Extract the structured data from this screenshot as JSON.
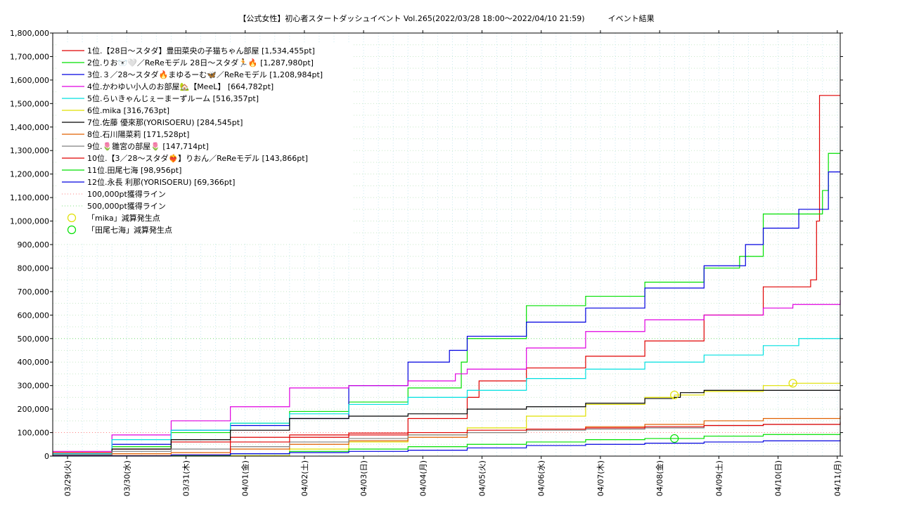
{
  "chart_data": {
    "type": "line",
    "title": "【公式女性】初心者スタートダッシュイベント Vol.265(2022/03/28 18:00～2022/04/10 21:59)　　　イベント結果",
    "y_ticks": [
      "0",
      "100,000",
      "200,000",
      "300,000",
      "400,000",
      "500,000",
      "600,000",
      "700,000",
      "800,000",
      "900,000",
      "1,000,000",
      "1,100,000",
      "1,200,000",
      "1,300,000",
      "1,400,000",
      "1,500,000",
      "1,600,000",
      "1,700,000",
      "1,800,000"
    ],
    "ylim": [
      0,
      1800000
    ],
    "x_ticks": [
      "03/29(火)",
      "03/30(水)",
      "03/31(木)",
      "04/01(金)",
      "04/02(土)",
      "04/03(日)",
      "04/04(月)",
      "04/05(火)",
      "04/06(水)",
      "04/07(木)",
      "04/08(金)",
      "04/09(土)",
      "04/10(日)",
      "04/11(月)"
    ],
    "xlim": [
      0,
      13.3
    ],
    "grid": true,
    "legend_position": "top-left",
    "series": [
      {
        "name": "1位.【28日〜スタダ】豊田菜央の子猫ちゃん部屋 [1,534,455pt]",
        "color": "#e00000",
        "points": [
          [
            0,
            15000
          ],
          [
            1,
            30000
          ],
          [
            2,
            60000
          ],
          [
            3,
            80000
          ],
          [
            4,
            90000
          ],
          [
            5,
            98000
          ],
          [
            6,
            160000
          ],
          [
            7,
            250000
          ],
          [
            7.2,
            320000
          ],
          [
            8,
            375000
          ],
          [
            9,
            425000
          ],
          [
            10,
            490000
          ],
          [
            11,
            600000
          ],
          [
            12,
            720000
          ],
          [
            12.8,
            750000
          ],
          [
            12.9,
            1000000
          ],
          [
            12.95,
            1534455
          ],
          [
            13.3,
            1534455
          ]
        ]
      },
      {
        "name": "2位.りお🐻‍❄️🤍／ReReモデル 28日〜スタダ🏃🔥 [1,287,980pt]",
        "color": "#00e000",
        "points": [
          [
            0,
            5000
          ],
          [
            1,
            40000
          ],
          [
            2,
            100000
          ],
          [
            3,
            140000
          ],
          [
            4,
            190000
          ],
          [
            5,
            230000
          ],
          [
            6,
            290000
          ],
          [
            6.9,
            400000
          ],
          [
            7,
            500000
          ],
          [
            8,
            640000
          ],
          [
            9,
            680000
          ],
          [
            10,
            740000
          ],
          [
            11,
            800000
          ],
          [
            11.6,
            850000
          ],
          [
            12,
            1030000
          ],
          [
            13,
            1130000
          ],
          [
            13.1,
            1287980
          ],
          [
            13.3,
            1287980
          ]
        ]
      },
      {
        "name": "3位.３／28〜スタダ🔥まゆるーむ🦋／ReReモデル [1,208,984pt]",
        "color": "#0000e0",
        "points": [
          [
            0,
            5000
          ],
          [
            1,
            50000
          ],
          [
            2,
            110000
          ],
          [
            3,
            130000
          ],
          [
            4,
            160000
          ],
          [
            5,
            300000
          ],
          [
            6,
            400000
          ],
          [
            6.7,
            450000
          ],
          [
            7,
            510000
          ],
          [
            8,
            570000
          ],
          [
            9,
            630000
          ],
          [
            10,
            715000
          ],
          [
            11,
            810000
          ],
          [
            11.7,
            900000
          ],
          [
            12,
            970000
          ],
          [
            12.6,
            1050000
          ],
          [
            13.1,
            1208984
          ],
          [
            13.3,
            1208984
          ]
        ]
      },
      {
        "name": "4位.かわゆい小人のお部屋🏡【MeeL】 [664,782pt]",
        "color": "#e000e0",
        "points": [
          [
            0,
            20000
          ],
          [
            1,
            90000
          ],
          [
            2,
            150000
          ],
          [
            3,
            210000
          ],
          [
            4,
            290000
          ],
          [
            5,
            300000
          ],
          [
            6,
            320000
          ],
          [
            6.8,
            350000
          ],
          [
            7,
            370000
          ],
          [
            8,
            460000
          ],
          [
            9,
            530000
          ],
          [
            10,
            580000
          ],
          [
            11,
            600000
          ],
          [
            12,
            630000
          ],
          [
            12.5,
            645000
          ],
          [
            13.3,
            664782
          ]
        ]
      },
      {
        "name": "5位.らいきゃんじぇーまーずルーム [516,357pt]",
        "color": "#00e0e0",
        "points": [
          [
            0,
            10000
          ],
          [
            1,
            70000
          ],
          [
            2,
            110000
          ],
          [
            3,
            140000
          ],
          [
            4,
            180000
          ],
          [
            5,
            220000
          ],
          [
            6,
            250000
          ],
          [
            7,
            280000
          ],
          [
            8,
            330000
          ],
          [
            9,
            370000
          ],
          [
            10,
            400000
          ],
          [
            11,
            430000
          ],
          [
            12,
            470000
          ],
          [
            12.6,
            500000
          ],
          [
            13.3,
            516357
          ]
        ]
      },
      {
        "name": "6位.mika [316,763pt]",
        "color": "#e0e000",
        "points": [
          [
            0,
            2000
          ],
          [
            4,
            30000
          ],
          [
            5,
            60000
          ],
          [
            6,
            90000
          ],
          [
            7,
            120000
          ],
          [
            8,
            170000
          ],
          [
            9,
            220000
          ],
          [
            10,
            250000
          ],
          [
            10.5,
            260000
          ],
          [
            11,
            275000
          ],
          [
            12,
            300000
          ],
          [
            12.5,
            310000
          ],
          [
            13.3,
            316763
          ]
        ]
      },
      {
        "name": "7位.佐藤 優來那(YORISOERU) [284,545pt]",
        "color": "#000000",
        "points": [
          [
            0,
            5000
          ],
          [
            1,
            30000
          ],
          [
            2,
            70000
          ],
          [
            3,
            110000
          ],
          [
            4,
            160000
          ],
          [
            5,
            170000
          ],
          [
            6,
            180000
          ],
          [
            7,
            200000
          ],
          [
            8,
            210000
          ],
          [
            9,
            225000
          ],
          [
            10,
            245000
          ],
          [
            10.5,
            250000
          ],
          [
            10.6,
            270000
          ],
          [
            11,
            280000
          ],
          [
            13.3,
            284545
          ]
        ]
      },
      {
        "name": "8位.石川陽菜莉 [171,528pt]",
        "color": "#e06000",
        "points": [
          [
            0,
            2000
          ],
          [
            1,
            10000
          ],
          [
            2,
            15000
          ],
          [
            3,
            30000
          ],
          [
            4,
            50000
          ],
          [
            5,
            65000
          ],
          [
            6,
            80000
          ],
          [
            7,
            100000
          ],
          [
            8,
            115000
          ],
          [
            9,
            125000
          ],
          [
            10,
            135000
          ],
          [
            11,
            150000
          ],
          [
            12,
            160000
          ],
          [
            13.3,
            171528
          ]
        ]
      },
      {
        "name": "9位.🌷雛宮の部屋🌷 [147,714pt]",
        "color": "#808080",
        "points": [
          [
            0,
            5000
          ],
          [
            1,
            20000
          ],
          [
            2,
            30000
          ],
          [
            3,
            40000
          ],
          [
            4,
            60000
          ],
          [
            5,
            75000
          ],
          [
            6,
            90000
          ],
          [
            7,
            100000
          ],
          [
            8,
            110000
          ],
          [
            9,
            115000
          ],
          [
            10,
            120000
          ],
          [
            11,
            130000
          ],
          [
            12,
            135000
          ],
          [
            13.3,
            147714
          ]
        ]
      },
      {
        "name": "10位.【3／28〜スタダ❤️‍🔥】りおん／ReReモデル [143,866pt]",
        "color": "#e00000",
        "points": [
          [
            0,
            2000
          ],
          [
            2,
            5000
          ],
          [
            3,
            60000
          ],
          [
            4,
            80000
          ],
          [
            5,
            90000
          ],
          [
            6,
            100000
          ],
          [
            7,
            110000
          ],
          [
            8,
            115000
          ],
          [
            9,
            120000
          ],
          [
            10,
            125000
          ],
          [
            11,
            130000
          ],
          [
            12,
            135000
          ],
          [
            13.3,
            143866
          ]
        ]
      },
      {
        "name": "11位.田尾七海 [98,956pt]",
        "color": "#00e000",
        "points": [
          [
            0,
            1000
          ],
          [
            3,
            10000
          ],
          [
            4,
            20000
          ],
          [
            5,
            30000
          ],
          [
            6,
            40000
          ],
          [
            7,
            50000
          ],
          [
            8,
            60000
          ],
          [
            9,
            70000
          ],
          [
            10,
            75000
          ],
          [
            11,
            85000
          ],
          [
            12,
            92000
          ],
          [
            13.3,
            98956
          ]
        ]
      },
      {
        "name": "12位.永長 利那(YORISOERU) [69,366pt]",
        "color": "#0000e0",
        "points": [
          [
            0,
            1000
          ],
          [
            2,
            5000
          ],
          [
            3,
            10000
          ],
          [
            4,
            15000
          ],
          [
            5,
            20000
          ],
          [
            6,
            25000
          ],
          [
            7,
            35000
          ],
          [
            8,
            45000
          ],
          [
            9,
            50000
          ],
          [
            10,
            55000
          ],
          [
            11,
            60000
          ],
          [
            12,
            65000
          ],
          [
            13.3,
            69366
          ]
        ]
      }
    ],
    "reference_lines": [
      {
        "name": "100,000pt獲得ライン",
        "value": 100000,
        "color": "#ff8080"
      },
      {
        "name": "500,000pt獲得ライン",
        "value": 500000,
        "color": "#80e080"
      }
    ],
    "markers": [
      {
        "name": "「mika」減算発生点",
        "color": "#e0e000",
        "points": [
          [
            10.5,
            260000
          ],
          [
            12.5,
            310000
          ]
        ]
      },
      {
        "name": "「田尾七海」減算発生点",
        "color": "#00e000",
        "points": [
          [
            10.5,
            75000
          ]
        ]
      }
    ]
  }
}
